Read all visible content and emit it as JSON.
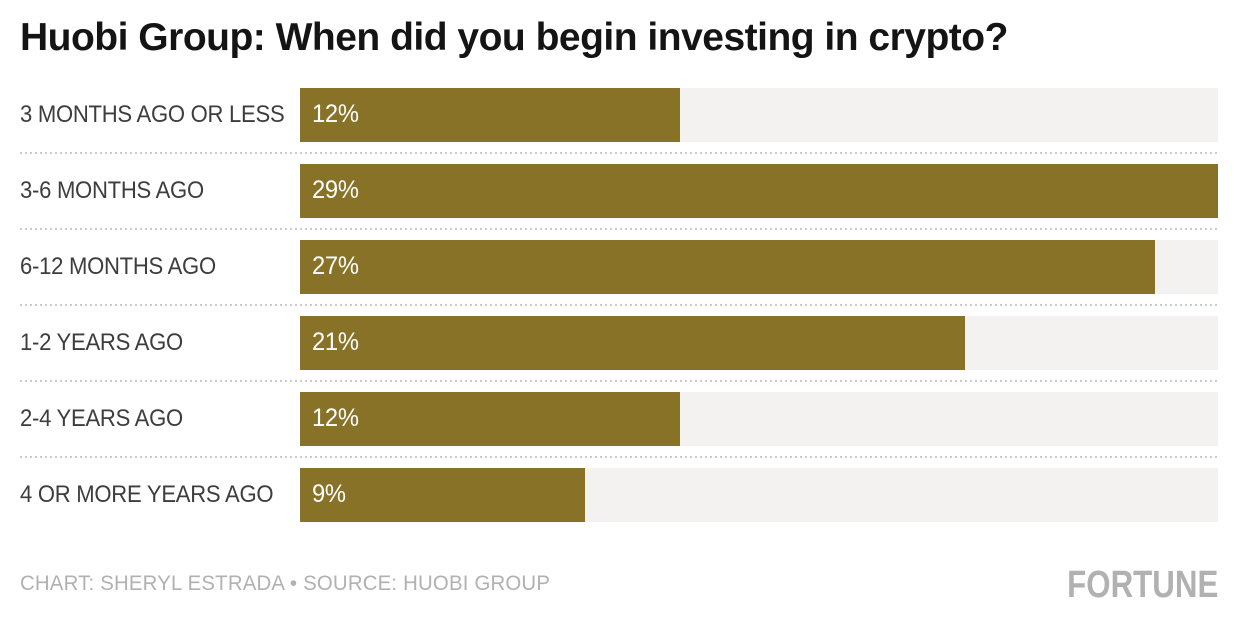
{
  "title": "Huobi Group: When did you begin investing in crypto?",
  "chart_data": {
    "type": "bar",
    "orientation": "horizontal",
    "title": "Huobi Group: When did you begin investing in crypto?",
    "categories": [
      "3 MONTHS AGO OR LESS",
      "3-6 MONTHS AGO",
      "6-12 MONTHS AGO",
      "1-2 YEARS AGO",
      "2-4 YEARS AGO",
      "4 OR MORE YEARS AGO"
    ],
    "values": [
      12,
      29,
      27,
      21,
      12,
      9
    ],
    "value_labels": [
      "12%",
      "29%",
      "27%",
      "21%",
      "12%",
      "9%"
    ],
    "xlabel": "",
    "ylabel": "",
    "xlim": [
      0,
      29
    ],
    "grid": false,
    "legend": false,
    "bar_color": "#877227",
    "track_color": "#f3f2f1",
    "value_label_position": "inside-left",
    "separator_style": "dotted"
  },
  "footer": {
    "credit": "CHART: SHERYL ESTRADA • SOURCE: HUOBI GROUP",
    "logo": "FORTUNE"
  },
  "colors": {
    "bar": "#877227",
    "track": "#f3f2f1",
    "title": "#141414",
    "label": "#3d3d3d",
    "value": "#ffffff",
    "muted": "#b1b1b1",
    "separator": "#cccccc",
    "background": "#ffffff"
  }
}
